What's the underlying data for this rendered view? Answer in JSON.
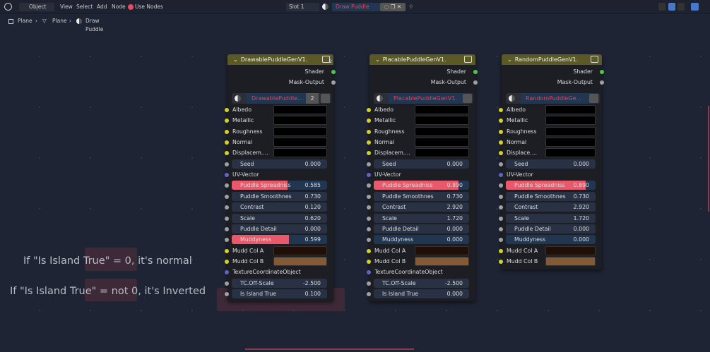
{
  "header": {
    "mode": "Object",
    "menus": [
      "View",
      "Select",
      "Add",
      "Node"
    ],
    "use_nodes": "Use Nodes",
    "slot": "Slot 1",
    "material": "Draw Puddle"
  },
  "breadcrumb": [
    "Plane",
    "Plane",
    "Draw Puddle"
  ],
  "notes": [
    "If \"Is Island True\"  = 0, it's normal",
    "If \"Is Island True\"  = not 0, it's Inverted"
  ],
  "colors": {
    "accent": "#e85a6b",
    "header_node": "#5b5a26",
    "mudd_a": "#1f0f06",
    "mudd_b": "#835a33",
    "socket_yellow": "#d4d02a",
    "socket_grey": "#a0a0a0",
    "socket_purple": "#6363c7",
    "socket_green": "#4dc84d"
  },
  "nodes": [
    {
      "title": "DrawablePuddleGenV1.",
      "users": "2",
      "outputs": [
        "Shader",
        "Mask-Output"
      ],
      "material": "DrawablePuddle...",
      "material_users": "2",
      "inputs": [
        {
          "label": "Albedo",
          "type": "color",
          "socket": "yellow"
        },
        {
          "label": "Metallic",
          "type": "color",
          "socket": "yellow"
        },
        {
          "label": "Roughness",
          "type": "color",
          "socket": "yellow"
        },
        {
          "label": "Normal",
          "type": "color",
          "socket": "yellow"
        },
        {
          "label": "Displacem....",
          "type": "color",
          "socket": "yellow"
        },
        {
          "label": "Seed",
          "type": "value",
          "value": "0.000"
        },
        {
          "label": "UV-Vector",
          "type": "label",
          "socket": "purple"
        },
        {
          "label": "Puddle Spreadniss",
          "type": "slider",
          "value": "0.585",
          "fraction": 0.585
        },
        {
          "label": "Puddle Smoothnes",
          "type": "value",
          "value": "0.730"
        },
        {
          "label": "Contrast",
          "type": "value",
          "value": "0.120"
        },
        {
          "label": "Scale",
          "type": "value",
          "value": "0.620"
        },
        {
          "label": "Puddle Detail",
          "type": "value",
          "value": "0.000"
        },
        {
          "label": "Muddyness",
          "type": "slider",
          "value": "0.599",
          "fraction": 0.599
        },
        {
          "label": "Mudd Col A",
          "type": "color",
          "socket": "yellow",
          "color": "#1f0f06"
        },
        {
          "label": "Mudd Col B",
          "type": "color",
          "socket": "yellow",
          "color": "#835a33"
        },
        {
          "label": "TextureCoordinateObject",
          "type": "label",
          "socket": "purple"
        },
        {
          "label": "TC.Off-Scale",
          "type": "value",
          "value": "-2.500"
        },
        {
          "label": "Is Island True",
          "type": "value",
          "value": "0.100"
        }
      ]
    },
    {
      "title": "PlacablePuddleGenV1.",
      "outputs": [
        "Shader",
        "Mask-Output"
      ],
      "material": "PlacablePuddleGenV1.",
      "inputs": [
        {
          "label": "Albedo",
          "type": "color",
          "socket": "yellow"
        },
        {
          "label": "Metallic",
          "type": "color",
          "socket": "yellow"
        },
        {
          "label": "Roughness",
          "type": "color",
          "socket": "yellow"
        },
        {
          "label": "Normal",
          "type": "color",
          "socket": "yellow"
        },
        {
          "label": "Displacem....",
          "type": "color",
          "socket": "yellow"
        },
        {
          "label": "Seed",
          "type": "value",
          "value": "0.000"
        },
        {
          "label": "UV-Vector",
          "type": "label",
          "socket": "purple"
        },
        {
          "label": "Puddle Spreadniss",
          "type": "slider",
          "value": "0.890",
          "fraction": 0.89
        },
        {
          "label": "Puddle Smoothnes",
          "type": "value",
          "value": "0.730"
        },
        {
          "label": "Contrast",
          "type": "value",
          "value": "2.920"
        },
        {
          "label": "Scale",
          "type": "value",
          "value": "1.720"
        },
        {
          "label": "Puddle Detail",
          "type": "value",
          "value": "0.000"
        },
        {
          "label": "Muddyness",
          "type": "slider",
          "value": "0.000",
          "fraction": 0
        },
        {
          "label": "Mudd Col A",
          "type": "color",
          "socket": "yellow",
          "color": "#1f0f06"
        },
        {
          "label": "Mudd Col B",
          "type": "color",
          "socket": "yellow",
          "color": "#835a33"
        },
        {
          "label": "TextureCoordinateObject",
          "type": "label",
          "socket": "purple"
        },
        {
          "label": "TC.Off-Scale",
          "type": "value",
          "value": "-2.500"
        },
        {
          "label": "Is Island True",
          "type": "value",
          "value": "0.000"
        }
      ]
    },
    {
      "title": "RandomPuddleGenV1.",
      "outputs": [
        "Shader",
        "Mask-Output"
      ],
      "material": "RandomPuddleGe...",
      "inputs": [
        {
          "label": "Albedo",
          "type": "color",
          "socket": "yellow"
        },
        {
          "label": "Metallic",
          "type": "color",
          "socket": "yellow"
        },
        {
          "label": "Roughness",
          "type": "color",
          "socket": "yellow"
        },
        {
          "label": "Normal",
          "type": "color",
          "socket": "yellow"
        },
        {
          "label": "Displace....",
          "type": "color",
          "socket": "yellow"
        },
        {
          "label": "Seed",
          "type": "value",
          "value": "0.000"
        },
        {
          "label": "UV-Vector",
          "type": "label",
          "socket": "purple"
        },
        {
          "label": "Puddle Spreadniss",
          "type": "slider",
          "value": "0.890",
          "fraction": 0.89
        },
        {
          "label": "Puddle Smoothnes",
          "type": "value",
          "value": "0.730"
        },
        {
          "label": "Contrast",
          "type": "value",
          "value": "2.920"
        },
        {
          "label": "Scale",
          "type": "value",
          "value": "1.720"
        },
        {
          "label": "Puddle Detail",
          "type": "value",
          "value": "0.000"
        },
        {
          "label": "Muddyness",
          "type": "slider",
          "value": "0.000",
          "fraction": 0
        },
        {
          "label": "Mudd Col A",
          "type": "color",
          "socket": "yellow",
          "color": "#1f0f06"
        },
        {
          "label": "Mudd Col B",
          "type": "color",
          "socket": "yellow",
          "color": "#835a33"
        }
      ]
    }
  ]
}
